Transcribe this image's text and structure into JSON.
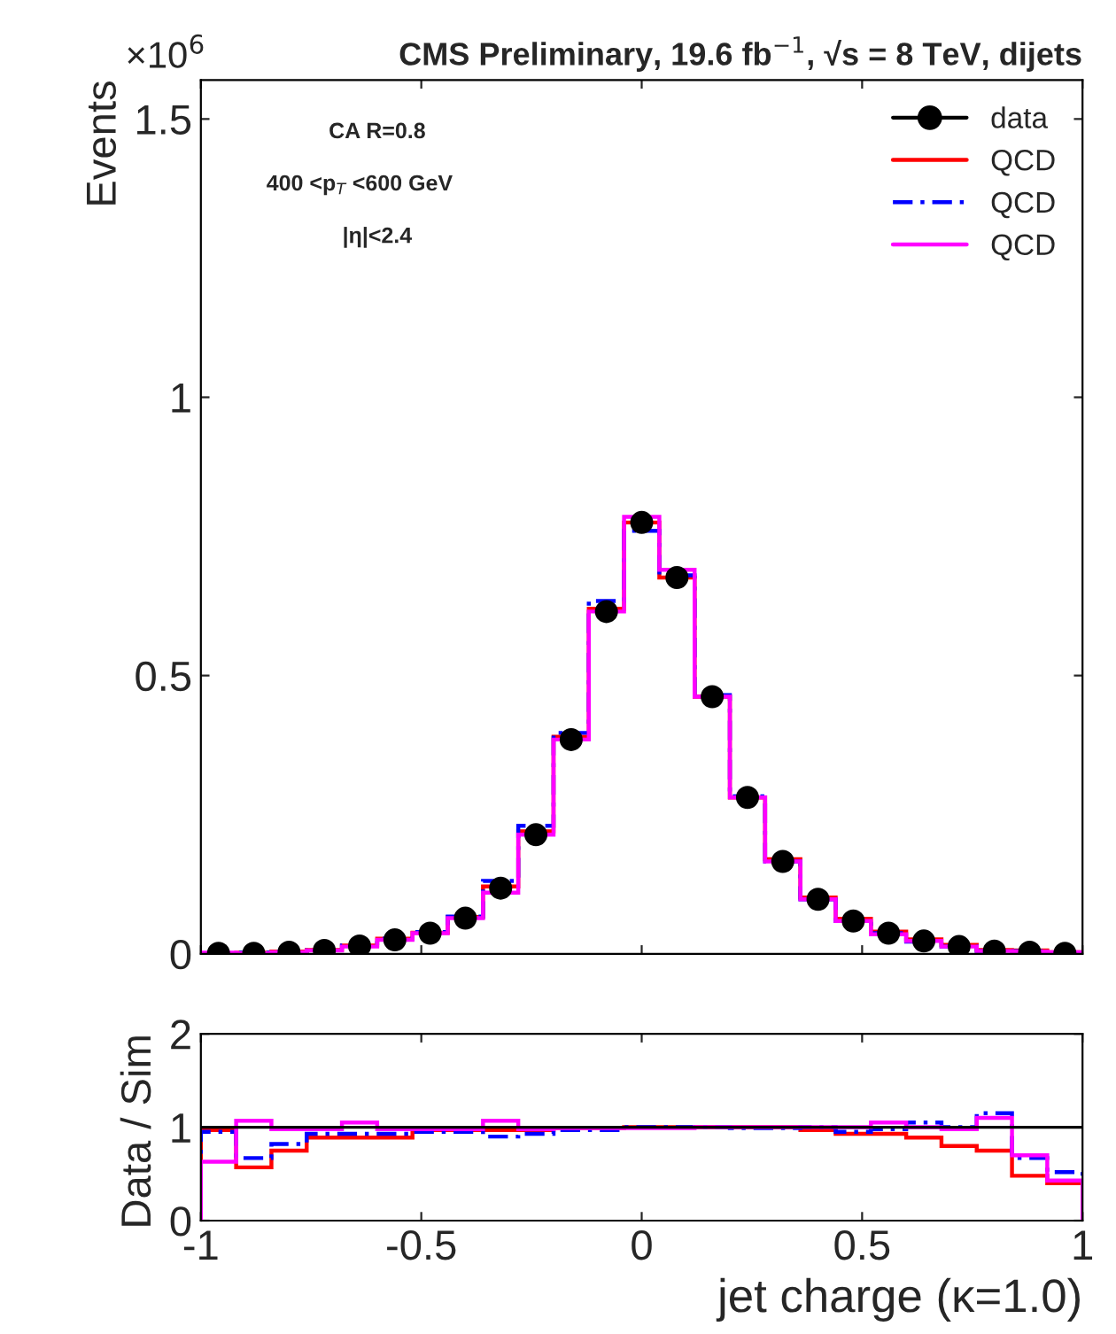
{
  "chart_data": [
    {
      "type": "histogram",
      "title": "CMS Preliminary, 19.6 fb$^{−1}$, √s = 8 TeV, dijets",
      "ylabel": "Events",
      "bins": [
        -1,
        -0.92,
        -0.84,
        -0.76,
        -0.68,
        -0.6,
        -0.52,
        -0.44,
        -0.36,
        -0.28,
        -0.2,
        -0.12,
        -0.04,
        0.04,
        0.12,
        0.2,
        0.28,
        0.36,
        0.44,
        0.52,
        0.6,
        0.68,
        0.76,
        0.84,
        0.92,
        1
      ],
      "xlim": [
        -1,
        1
      ],
      "ylim": [
        0,
        1.57
      ],
      "yticks": [
        0,
        0.5,
        1,
        1.5
      ],
      "tick_labels": "y",
      "legend": "top right",
      "annotations": [
        "×10$^{6}$",
        "CA R=0.8",
        "400 <p$_{T}$ <600 GeV",
        "|η|<2.4"
      ],
      "series": [
        {
          "name": "data",
          "type": "scatter",
          "color": "#000000",
          "marker": "circle",
          "x": [
            -0.96,
            -0.88,
            -0.8,
            -0.72,
            -0.64,
            -0.56,
            -0.48,
            -0.4,
            -0.32,
            -0.24,
            -0.16,
            -0.08,
            0,
            0.08,
            0.16,
            0.24,
            0.32,
            0.4,
            0.48,
            0.56,
            0.64,
            0.72,
            0.8,
            0.88,
            0.96
          ],
          "values": [
            0.001,
            0.001,
            0.003,
            0.006,
            0.014,
            0.025,
            0.037,
            0.064,
            0.118,
            0.214,
            0.385,
            0.615,
            0.775,
            0.676,
            0.462,
            0.281,
            0.166,
            0.098,
            0.059,
            0.037,
            0.023,
            0.013,
            0.005,
            0.003,
            0.001
          ]
        },
        {
          "name": "QCD",
          "color": "#ff0000",
          "line_style": "solid",
          "values": [
            0.001,
            0.002,
            0.004,
            0.007,
            0.015,
            0.027,
            0.038,
            0.066,
            0.121,
            0.22,
            0.39,
            0.62,
            0.775,
            0.676,
            0.462,
            0.281,
            0.17,
            0.101,
            0.063,
            0.04,
            0.026,
            0.016,
            0.007,
            0.006,
            0.003
          ]
        },
        {
          "name": "QCD",
          "color": "#0000ff",
          "line_style": "dashed",
          "values": [
            0.001,
            0.002,
            0.004,
            0.006,
            0.015,
            0.027,
            0.039,
            0.067,
            0.131,
            0.23,
            0.397,
            0.634,
            0.76,
            0.68,
            0.465,
            0.283,
            0.166,
            0.098,
            0.059,
            0.037,
            0.022,
            0.013,
            0.005,
            0.005,
            0.002
          ]
        },
        {
          "name": "QCD",
          "color": "#ff00ff",
          "line_style": "solid",
          "values": [
            0.002,
            0.001,
            0.003,
            0.006,
            0.013,
            0.025,
            0.037,
            0.064,
            0.11,
            0.214,
            0.385,
            0.615,
            0.785,
            0.69,
            0.462,
            0.281,
            0.166,
            0.098,
            0.059,
            0.035,
            0.023,
            0.013,
            0.005,
            0.004,
            0.003
          ]
        }
      ]
    },
    {
      "type": "histogram",
      "xlabel": "jet charge (κ=1.0)",
      "ylabel": "Data / Sim",
      "bins": [
        -1,
        -0.92,
        -0.84,
        -0.76,
        -0.68,
        -0.6,
        -0.52,
        -0.44,
        -0.36,
        -0.28,
        -0.2,
        -0.12,
        -0.04,
        0.04,
        0.12,
        0.2,
        0.28,
        0.36,
        0.44,
        0.52,
        0.6,
        0.68,
        0.76,
        0.84,
        0.92,
        1
      ],
      "xlim": [
        -1,
        1
      ],
      "xticks": [
        -1,
        -0.5,
        0,
        0.5,
        1
      ],
      "ylim": [
        0,
        2
      ],
      "yticks": [
        0,
        1,
        2
      ],
      "ref_lines": [
        {
          "axis": "y",
          "value": 1,
          "color": "#000000"
        }
      ],
      "series": [
        {
          "color": "#ff0000",
          "line_style": "solid",
          "values": [
            0.97,
            0.57,
            0.75,
            0.89,
            0.89,
            0.89,
            0.97,
            0.97,
            0.97,
            0.97,
            0.99,
            0.99,
            1,
            1,
            1,
            1,
            1,
            0.97,
            0.93,
            0.93,
            0.89,
            0.8,
            0.75,
            0.48,
            0.4
          ]
        },
        {
          "color": "#0000ff",
          "line_style": "dashed",
          "values": [
            0.95,
            0.67,
            0.82,
            0.93,
            0.93,
            0.93,
            0.95,
            0.95,
            0.9,
            0.93,
            0.97,
            0.97,
            1,
            1,
            1,
            0.99,
            0.99,
            1,
            0.95,
            0.98,
            1.05,
            1,
            1.15,
            0.67,
            0.52
          ]
        },
        {
          "color": "#ff00ff",
          "line_style": "solid",
          "values": [
            0.63,
            1.07,
            0.98,
            0.98,
            1.05,
            0.98,
            0.98,
            0.98,
            1.07,
            0.98,
            0.99,
            0.99,
            0.99,
            0.99,
            1,
            1,
            1,
            1,
            1,
            1.05,
            1,
            0.98,
            1.1,
            0.7,
            0.43
          ]
        }
      ]
    }
  ]
}
